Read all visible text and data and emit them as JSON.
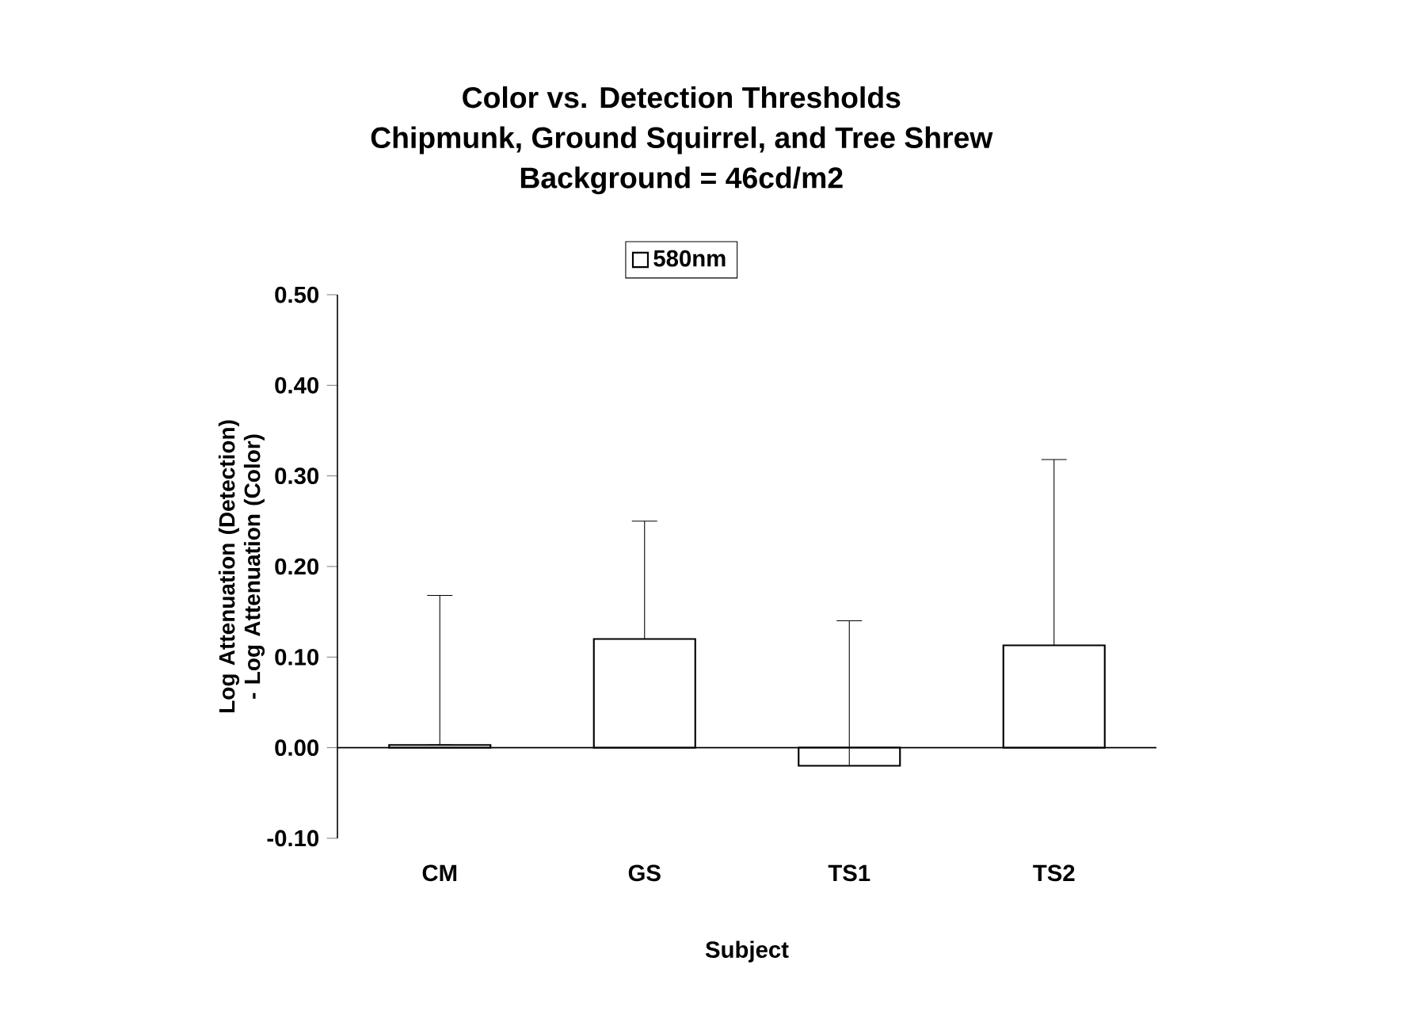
{
  "chart_data": {
    "type": "bar",
    "title": "Color vs. Detection Thresholds",
    "subtitle": "Chipmunk, Ground Squirrel, and Tree Shrew",
    "annotations": [
      "Background = 46cd/m2"
    ],
    "xlabel": "Subject",
    "ylabel": "Log Attenuation (Detection) - Log Attenuation (Color)",
    "categories": [
      "CM",
      "GS",
      "TS1",
      "TS2"
    ],
    "series": [
      {
        "name": "580nm",
        "color": "#ffffff",
        "values": [
          0.003,
          0.12,
          -0.02,
          0.113
        ],
        "errors": [
          [
            0.003,
            0.168
          ],
          [
            0.12,
            0.25
          ],
          [
            -0.02,
            0.14
          ],
          [
            0.113,
            0.318
          ]
        ]
      }
    ],
    "ylim": [
      -0.1,
      0.5
    ],
    "yticks": [
      {
        "value": -0.1,
        "label": "-0.10"
      },
      {
        "value": 0,
        "label": "0.00"
      },
      {
        "value": 0.1,
        "label": "0.10"
      },
      {
        "value": 0.2,
        "label": "0.20"
      },
      {
        "value": 0.3,
        "label": "0.30"
      },
      {
        "value": 0.4,
        "label": "0.40"
      },
      {
        "value": 0.5,
        "label": "0.50"
      }
    ],
    "legend": "top"
  }
}
